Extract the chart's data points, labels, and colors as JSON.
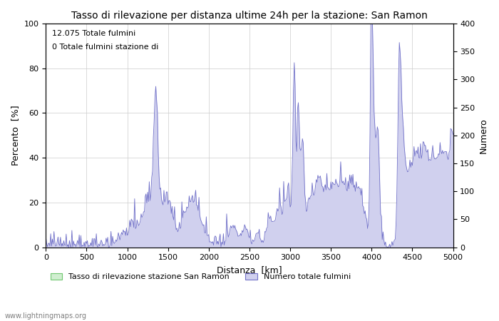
{
  "title": "Tasso di rilevazione per distanza ultime 24h per la stazione: San Ramon",
  "xlabel": "Distanza  [km]",
  "ylabel_left": "Percento  [%]",
  "ylabel_right": "Numero",
  "annotation_line1": "12.075 Totale fulmini",
  "annotation_line2": "0 Totale fulmini stazione di",
  "legend_label1": "Tasso di rilevazione stazione San Ramon",
  "legend_label2": "Numero totale fulmini",
  "watermark": "www.lightningmaps.org",
  "xlim": [
    0,
    5000
  ],
  "ylim_left": [
    0,
    100
  ],
  "ylim_right": [
    0,
    400
  ],
  "xticks": [
    0,
    500,
    1000,
    1500,
    2000,
    2500,
    3000,
    3500,
    4000,
    4500,
    5000
  ],
  "yticks_left": [
    0,
    20,
    40,
    60,
    80,
    100
  ],
  "yticks_right": [
    0,
    50,
    100,
    150,
    200,
    250,
    300,
    350,
    400
  ],
  "fill_color_blue": "#d0d0ee",
  "fill_color_green": "#d0eed0",
  "line_color_blue": "#7070c8",
  "line_color_green": "#70c870",
  "background_color": "#ffffff",
  "grid_color": "#cccccc",
  "figsize": [
    7.0,
    4.5
  ],
  "dpi": 100
}
